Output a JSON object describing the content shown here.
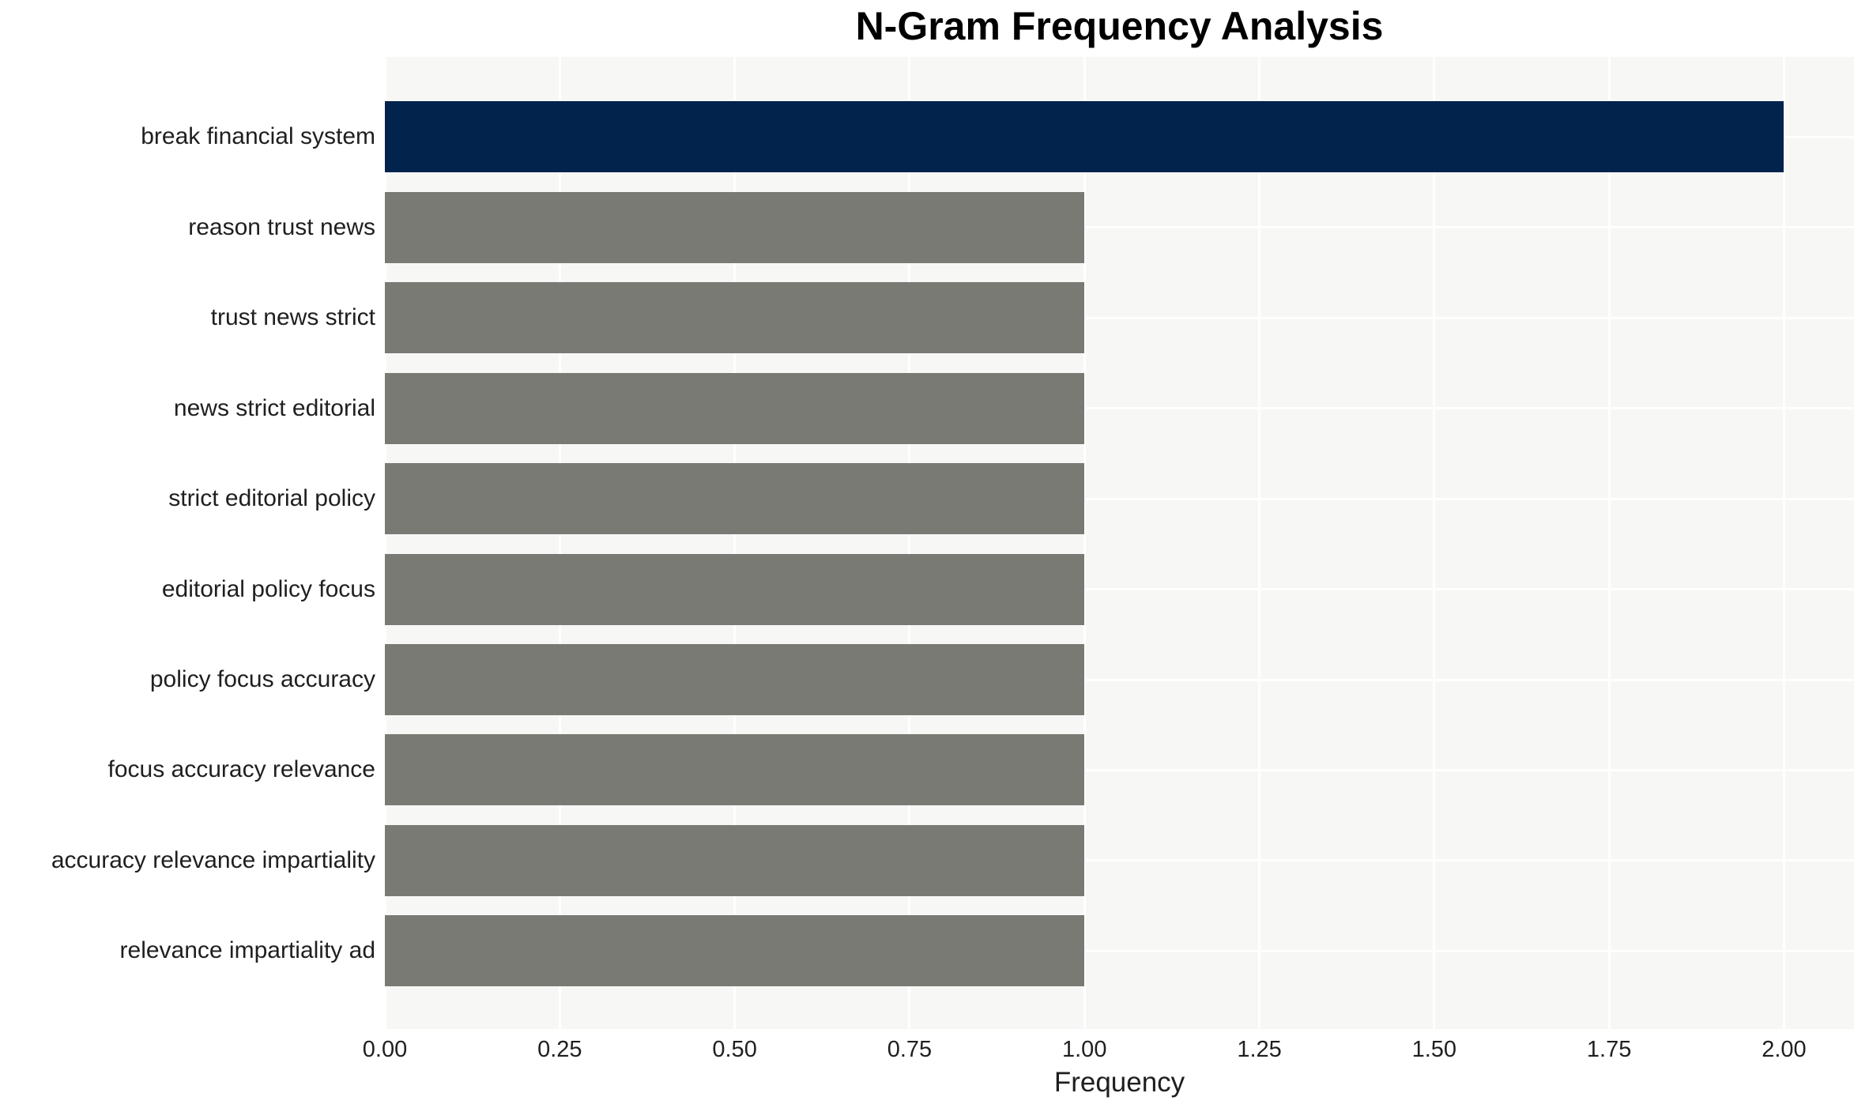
{
  "chart_data": {
    "type": "bar",
    "orientation": "horizontal",
    "title": "N-Gram Frequency Analysis",
    "xlabel": "Frequency",
    "ylabel": "",
    "categories": [
      "break financial system",
      "reason trust news",
      "trust news strict",
      "news strict editorial",
      "strict editorial policy",
      "editorial policy focus",
      "policy focus accuracy",
      "focus accuracy relevance",
      "accuracy relevance impartiality",
      "relevance impartiality ad"
    ],
    "values": [
      2,
      1,
      1,
      1,
      1,
      1,
      1,
      1,
      1,
      1
    ],
    "xlim": [
      0,
      2.1
    ],
    "xticks": [
      0,
      0.25,
      0.5,
      0.75,
      1.0,
      1.25,
      1.5,
      1.75,
      2.0
    ],
    "xtick_labels": [
      "0.00",
      "0.25",
      "0.50",
      "0.75",
      "1.00",
      "1.25",
      "1.50",
      "1.75",
      "2.00"
    ],
    "grid": true,
    "legend": false,
    "highlight_index": 0,
    "colors": {
      "highlight_bar": "#02234c",
      "default_bar": "#7a7a74",
      "plot_background": "#f7f7f6",
      "gridline": "#ffffff"
    }
  }
}
